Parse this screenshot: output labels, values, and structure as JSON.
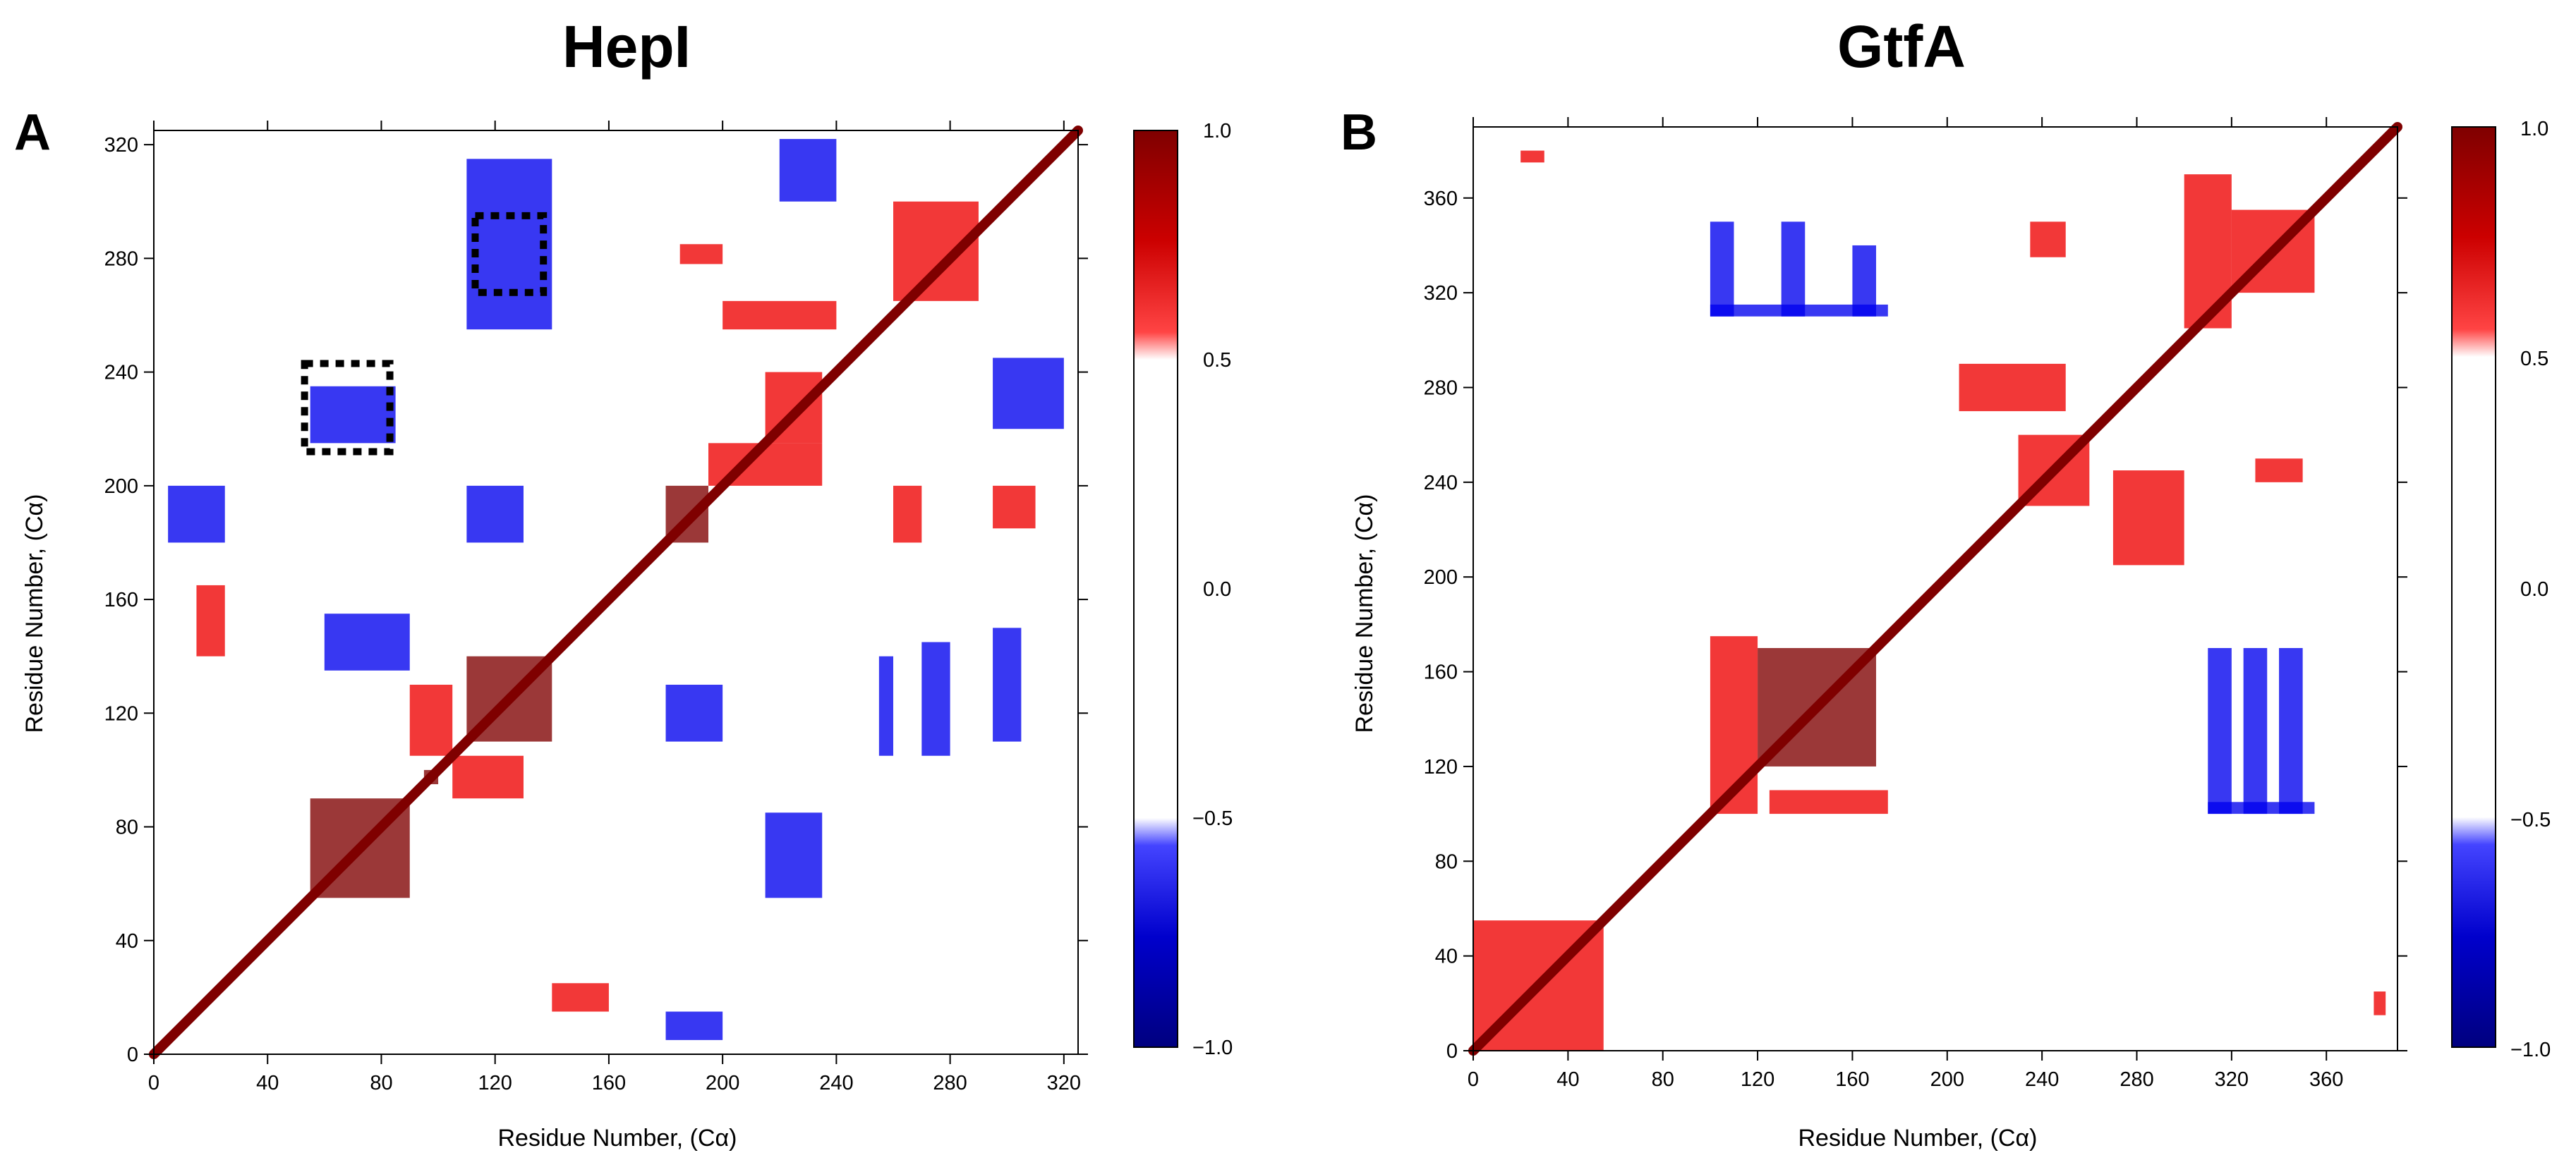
{
  "figure": {
    "panels": [
      {
        "letter": "A",
        "title": "HepI",
        "xlabel": "Residue Number, (Cα)",
        "ylabel": "Residue Number, (Cα)",
        "colorbar_ticks": [
          "1.0",
          "0.5",
          "0.0",
          "−0.5",
          "−1.0"
        ]
      },
      {
        "letter": "B",
        "title": "GtfA",
        "xlabel": "Residue Number, (Cα)",
        "ylabel": "Residue Number, (Cα)",
        "colorbar_ticks": [
          "1.0",
          "0.5",
          "0.0",
          "−0.5",
          "−1.0"
        ]
      }
    ]
  },
  "colors": {
    "strong_positive": "#7f0000",
    "positive": "#ee0000",
    "neutral": "#ffffff",
    "negative": "#0000ee",
    "strong_negative": "#00007f",
    "highlight_box": "#000000"
  },
  "chart_data": [
    {
      "type": "heatmap",
      "title": "HepI",
      "xlabel": "Residue Number, (Cα)",
      "ylabel": "Residue Number, (Cα)",
      "xlim": [
        0,
        325
      ],
      "ylim": [
        0,
        325
      ],
      "xticks": [
        0,
        40,
        80,
        120,
        160,
        200,
        240,
        280,
        320
      ],
      "yticks": [
        0,
        40,
        80,
        120,
        160,
        200,
        240,
        280,
        320
      ],
      "colorbar": {
        "min": -1.0,
        "max": 1.0,
        "ticks": [
          1.0,
          0.5,
          0.0,
          -0.5,
          -1.0
        ],
        "white_band": [
          -0.5,
          0.5
        ]
      },
      "diagonal": {
        "from": 0,
        "to": 325,
        "value": 1.0
      },
      "regions": [
        {
          "x": [
            55,
            90
          ],
          "y": [
            55,
            90
          ],
          "value": 0.95
        },
        {
          "x": [
            110,
            140
          ],
          "y": [
            110,
            140
          ],
          "value": 0.95
        },
        {
          "x": [
            95,
            100
          ],
          "y": [
            95,
            100
          ],
          "value": 1.0
        },
        {
          "x": [
            90,
            105
          ],
          "y": [
            105,
            130
          ],
          "value": 0.9
        },
        {
          "x": [
            105,
            130
          ],
          "y": [
            90,
            105
          ],
          "value": 0.9
        },
        {
          "x": [
            180,
            195
          ],
          "y": [
            180,
            200
          ],
          "value": 0.95
        },
        {
          "x": [
            215,
            235
          ],
          "y": [
            215,
            240
          ],
          "value": 0.85
        },
        {
          "x": [
            195,
            235
          ],
          "y": [
            200,
            215
          ],
          "value": 0.75
        },
        {
          "x": [
            200,
            240
          ],
          "y": [
            255,
            265
          ],
          "value": 0.75
        },
        {
          "x": [
            185,
            200
          ],
          "y": [
            278,
            285
          ],
          "value": 0.8
        },
        {
          "x": [
            260,
            290
          ],
          "y": [
            265,
            300
          ],
          "value": 0.75
        },
        {
          "x": [
            295,
            310
          ],
          "y": [
            185,
            200
          ],
          "value": 0.8
        },
        {
          "x": [
            15,
            25
          ],
          "y": [
            140,
            165
          ],
          "value": 0.8
        },
        {
          "x": [
            140,
            160
          ],
          "y": [
            15,
            25
          ],
          "value": 0.8
        },
        {
          "x": [
            260,
            270
          ],
          "y": [
            180,
            200
          ],
          "value": 0.7
        },
        {
          "x": [
            110,
            130
          ],
          "y": [
            180,
            200
          ],
          "value": -0.9
        },
        {
          "x": [
            180,
            200
          ],
          "y": [
            110,
            130
          ],
          "value": -0.9
        },
        {
          "x": [
            255,
            260
          ],
          "y": [
            105,
            140
          ],
          "value": -0.85
        },
        {
          "x": [
            270,
            280
          ],
          "y": [
            105,
            145
          ],
          "value": -0.85
        },
        {
          "x": [
            295,
            305
          ],
          "y": [
            110,
            150
          ],
          "value": -0.8
        },
        {
          "x": [
            215,
            235
          ],
          "y": [
            55,
            85
          ],
          "value": -0.75
        },
        {
          "x": [
            55,
            85
          ],
          "y": [
            215,
            235
          ],
          "value": -0.75
        },
        {
          "x": [
            110,
            140
          ],
          "y": [
            255,
            315
          ],
          "value": -0.8
        },
        {
          "x": [
            220,
            240
          ],
          "y": [
            300,
            322
          ],
          "value": -0.8
        },
        {
          "x": [
            180,
            200
          ],
          "y": [
            5,
            15
          ],
          "value": -0.8
        },
        {
          "x": [
            5,
            25
          ],
          "y": [
            180,
            200
          ],
          "value": -0.8
        },
        {
          "x": [
            295,
            320
          ],
          "y": [
            220,
            245
          ],
          "value": -0.75
        },
        {
          "x": [
            60,
            90
          ],
          "y": [
            135,
            155
          ],
          "value": -0.7
        }
      ],
      "highlight_boxes": [
        {
          "x": [
            113,
            137
          ],
          "y": [
            268,
            295
          ]
        },
        {
          "x": [
            53,
            83
          ],
          "y": [
            212,
            243
          ]
        }
      ]
    },
    {
      "type": "heatmap",
      "title": "GtfA",
      "xlabel": "Residue Number, (Cα)",
      "ylabel": "Residue Number, (Cα)",
      "xlim": [
        0,
        390
      ],
      "ylim": [
        0,
        390
      ],
      "xticks": [
        0,
        40,
        80,
        120,
        160,
        200,
        240,
        280,
        320,
        360
      ],
      "yticks": [
        0,
        40,
        80,
        120,
        160,
        200,
        240,
        280,
        320,
        360
      ],
      "colorbar": {
        "min": -1.0,
        "max": 1.0,
        "ticks": [
          1.0,
          0.5,
          0.0,
          -0.5,
          -1.0
        ],
        "white_band": [
          -0.5,
          0.5
        ]
      },
      "diagonal": {
        "from": 0,
        "to": 390,
        "value": 1.0
      },
      "regions": [
        {
          "x": [
            120,
            170
          ],
          "y": [
            120,
            170
          ],
          "value": 0.95
        },
        {
          "x": [
            100,
            120
          ],
          "y": [
            100,
            175
          ],
          "value": 0.85
        },
        {
          "x": [
            125,
            175
          ],
          "y": [
            100,
            110
          ],
          "value": 0.85
        },
        {
          "x": [
            0,
            55
          ],
          "y": [
            0,
            55
          ],
          "value": 0.85
        },
        {
          "x": [
            230,
            260
          ],
          "y": [
            230,
            260
          ],
          "value": 0.85
        },
        {
          "x": [
            320,
            355
          ],
          "y": [
            320,
            355
          ],
          "value": 0.9
        },
        {
          "x": [
            235,
            250
          ],
          "y": [
            335,
            350
          ],
          "value": 0.8
        },
        {
          "x": [
            300,
            320
          ],
          "y": [
            305,
            370
          ],
          "value": 0.75
        },
        {
          "x": [
            330,
            350
          ],
          "y": [
            240,
            250
          ],
          "value": 0.8
        },
        {
          "x": [
            270,
            300
          ],
          "y": [
            205,
            245
          ],
          "value": 0.7
        },
        {
          "x": [
            205,
            250
          ],
          "y": [
            270,
            290
          ],
          "value": 0.7
        },
        {
          "x": [
            20,
            30
          ],
          "y": [
            375,
            380
          ],
          "value": 0.9
        },
        {
          "x": [
            380,
            385
          ],
          "y": [
            15,
            25
          ],
          "value": 0.9
        },
        {
          "x": [
            130,
            140
          ],
          "y": [
            310,
            350
          ],
          "value": -0.85
        },
        {
          "x": [
            160,
            170
          ],
          "y": [
            310,
            340
          ],
          "value": -0.85
        },
        {
          "x": [
            100,
            110
          ],
          "y": [
            310,
            350
          ],
          "value": -0.75
        },
        {
          "x": [
            310,
            320
          ],
          "y": [
            100,
            170
          ],
          "value": -0.8
        },
        {
          "x": [
            325,
            335
          ],
          "y": [
            100,
            170
          ],
          "value": -0.85
        },
        {
          "x": [
            340,
            350
          ],
          "y": [
            100,
            170
          ],
          "value": -0.8
        },
        {
          "x": [
            100,
            175
          ],
          "y": [
            310,
            315
          ],
          "value": -0.7
        },
        {
          "x": [
            310,
            355
          ],
          "y": [
            100,
            105
          ],
          "value": -0.7
        }
      ],
      "highlight_boxes": []
    }
  ]
}
